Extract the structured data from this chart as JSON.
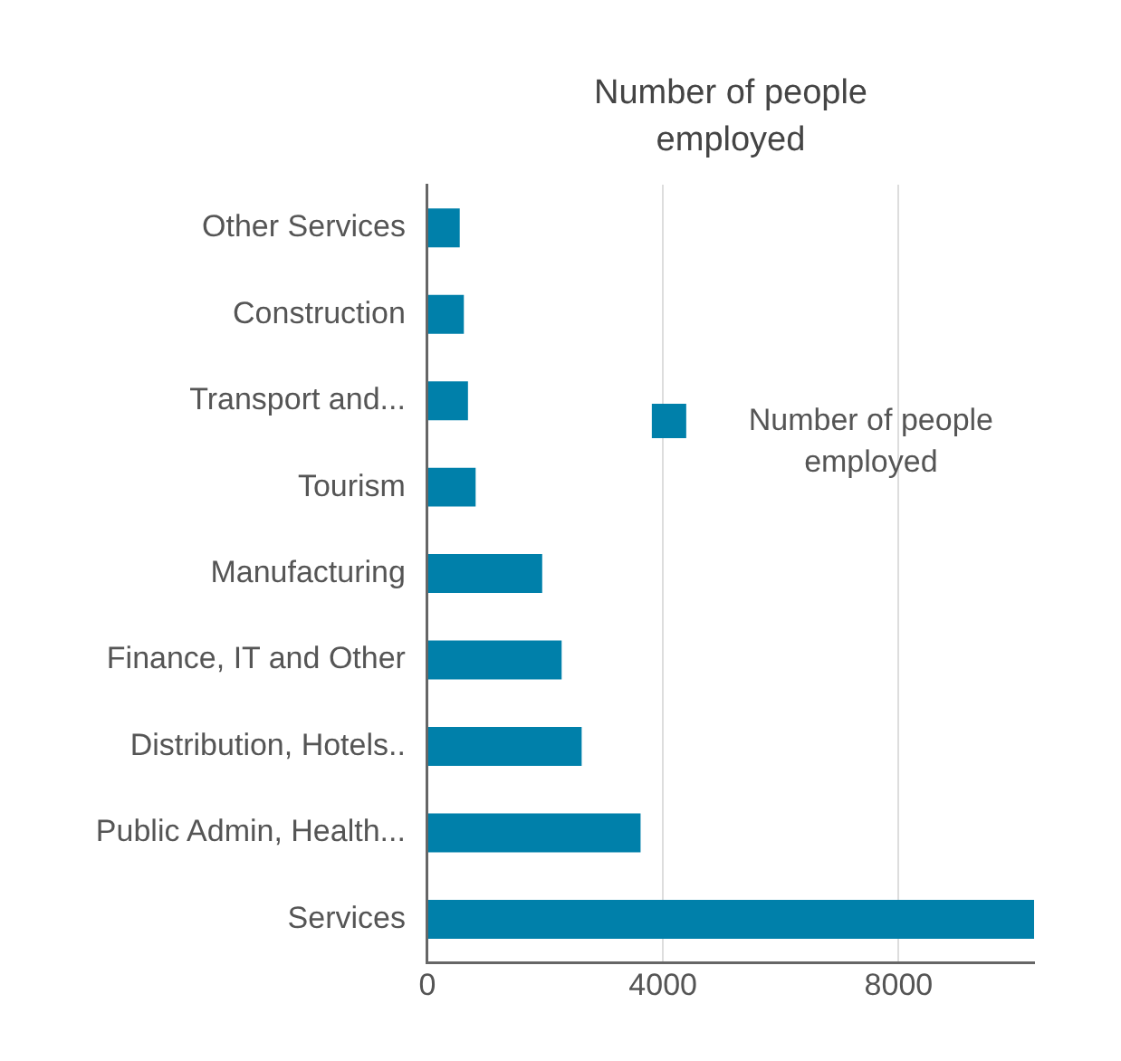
{
  "chart_data": {
    "type": "bar",
    "orientation": "horizontal",
    "title": "Number of people employed",
    "categories": [
      "Other Services",
      "Construction",
      "Transport and...",
      "Tourism",
      "Manufacturing",
      "Finance, IT and Other",
      "Distribution, Hotels..",
      "Public Admin, Health...",
      "Services"
    ],
    "series": [
      {
        "name": "Number of people employed",
        "color": "#0080aa",
        "values": [
          550,
          620,
          690,
          820,
          1950,
          2280,
          2620,
          3620,
          10300
        ]
      }
    ],
    "xlim": [
      0,
      10300
    ],
    "xticks": [
      0,
      4000,
      8000
    ],
    "grid": "x",
    "legend": "right"
  }
}
